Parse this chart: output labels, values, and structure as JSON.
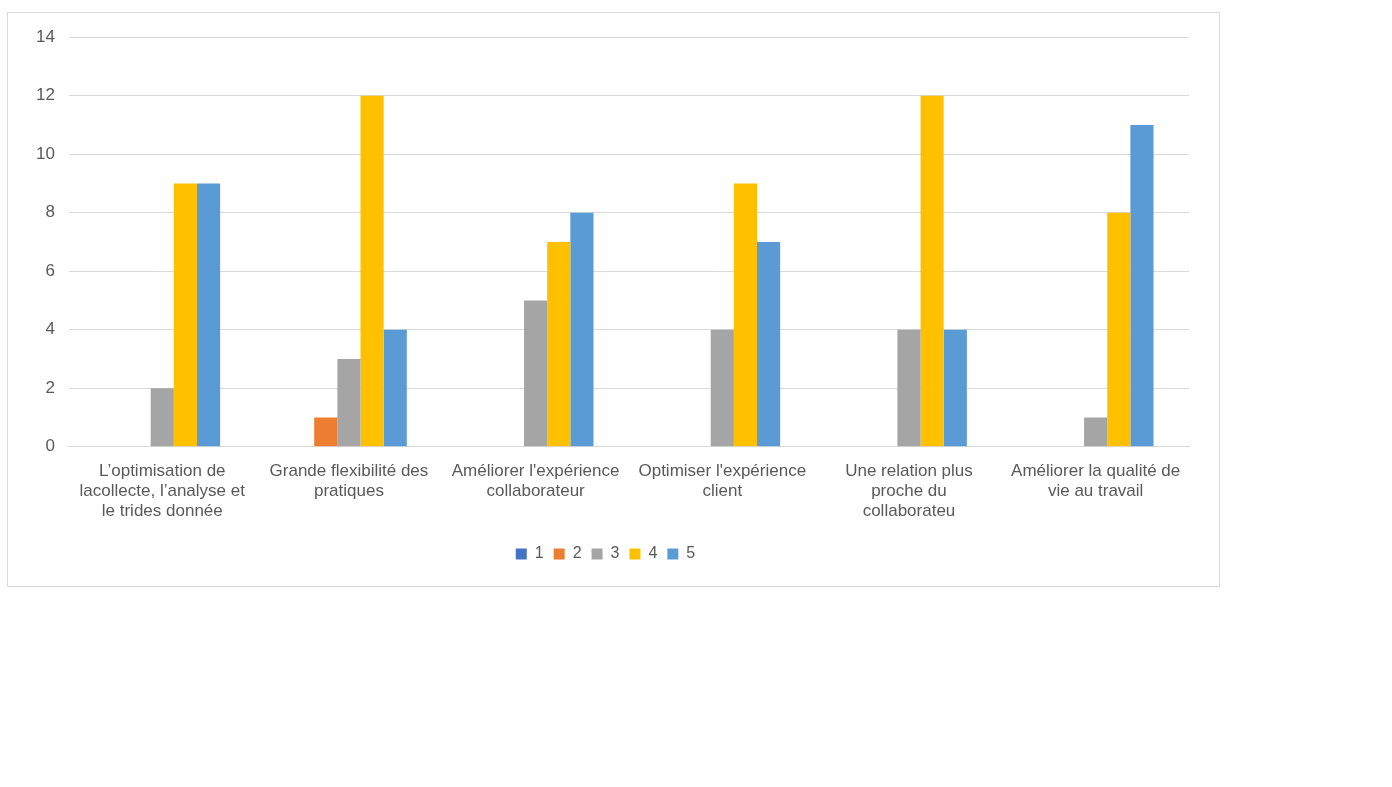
{
  "chart_data": {
    "type": "bar",
    "categories": [
      "L’optimisation de lacollecte, l’analyse et le trides donnée",
      "Grande flexibilité des pratiques",
      "Améliorer l'expérience collaborateur",
      "Optimiser l'expérience client",
      "Une relation plus proche du collaborateu",
      "Améliorer la qualité de vie au travail"
    ],
    "series": [
      {
        "name": "1",
        "color": "#4472c4",
        "values": [
          0,
          0,
          0,
          0,
          0,
          0
        ]
      },
      {
        "name": "2",
        "color": "#ed7d31",
        "values": [
          0,
          1,
          0,
          0,
          0,
          0
        ]
      },
      {
        "name": "3",
        "color": "#a5a5a5",
        "values": [
          2,
          3,
          5,
          4,
          4,
          1
        ]
      },
      {
        "name": "4",
        "color": "#ffc000",
        "values": [
          9,
          12,
          7,
          9,
          12,
          8
        ]
      },
      {
        "name": "5",
        "color": "#5b9bd5",
        "values": [
          9,
          4,
          8,
          7,
          4,
          11
        ]
      }
    ],
    "ylim": [
      0,
      14
    ],
    "yticks": [
      0,
      2,
      4,
      6,
      8,
      10,
      12,
      14
    ],
    "grid": "y",
    "legend": "bottom"
  }
}
